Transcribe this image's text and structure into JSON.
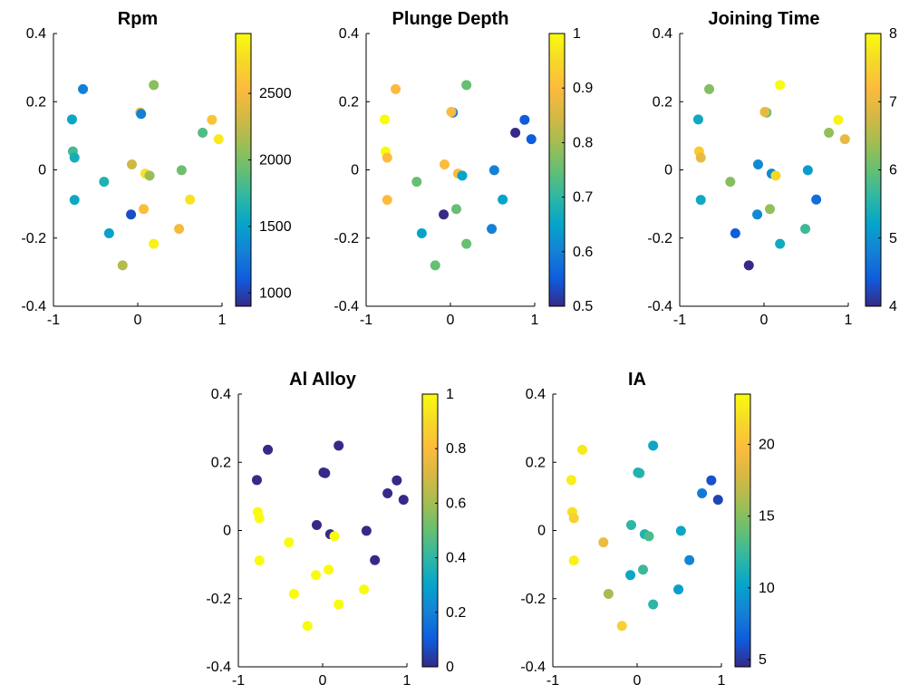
{
  "figure_bg": "#ffffff",
  "chart_data": [
    {
      "type": "scatter",
      "title": "Rpm",
      "xlim": [
        -1,
        1
      ],
      "ylim": [
        -0.4,
        0.4
      ],
      "xticks": [
        -1,
        0,
        1
      ],
      "xticklabels": [
        "-1",
        "0",
        "1"
      ],
      "yticks": [
        -0.4,
        -0.2,
        0,
        0.2,
        0.4
      ],
      "yticklabels": [
        "-0.4",
        "-0.2",
        "0",
        "0.2",
        "0.4"
      ],
      "grid": false,
      "colorbar": {
        "range": [
          900,
          2950
        ],
        "ticks": [
          1000,
          1500,
          2000,
          2500
        ],
        "ticklabels": [
          "1000",
          "1500",
          "2000",
          "2500"
        ]
      },
      "points": [
        {
          "x": -0.65,
          "y": 0.237,
          "c": 1300
        },
        {
          "x": -0.78,
          "y": 0.148,
          "c": 1550
        },
        {
          "x": -0.77,
          "y": 0.054,
          "c": 1800
        },
        {
          "x": -0.75,
          "y": 0.036,
          "c": 1600
        },
        {
          "x": -0.75,
          "y": -0.088,
          "c": 1550
        },
        {
          "x": -0.4,
          "y": -0.035,
          "c": 1650
        },
        {
          "x": -0.34,
          "y": -0.186,
          "c": 1500
        },
        {
          "x": -0.18,
          "y": -0.28,
          "c": 2200
        },
        {
          "x": -0.08,
          "y": -0.131,
          "c": 1050
        },
        {
          "x": -0.07,
          "y": 0.016,
          "c": 2300
        },
        {
          "x": 0.03,
          "y": 0.168,
          "c": 2350
        },
        {
          "x": 0.04,
          "y": 0.164,
          "c": 1300
        },
        {
          "x": 0.07,
          "y": -0.115,
          "c": 2550
        },
        {
          "x": 0.09,
          "y": -0.011,
          "c": 2800
        },
        {
          "x": 0.14,
          "y": -0.017,
          "c": 2100
        },
        {
          "x": 0.19,
          "y": 0.249,
          "c": 2050
        },
        {
          "x": 0.19,
          "y": -0.217,
          "c": 2900
        },
        {
          "x": 0.49,
          "y": -0.173,
          "c": 2500
        },
        {
          "x": 0.52,
          "y": -0.001,
          "c": 1950
        },
        {
          "x": 0.62,
          "y": -0.087,
          "c": 2800
        },
        {
          "x": 0.77,
          "y": 0.109,
          "c": 1850
        },
        {
          "x": 0.88,
          "y": 0.147,
          "c": 2600
        },
        {
          "x": 0.96,
          "y": 0.09,
          "c": 2850
        }
      ]
    },
    {
      "type": "scatter",
      "title": "Plunge Depth",
      "xlim": [
        -1,
        1
      ],
      "ylim": [
        -0.4,
        0.4
      ],
      "xticks": [
        -1,
        0,
        1
      ],
      "xticklabels": [
        "-1",
        "0",
        "1"
      ],
      "yticks": [
        -0.4,
        -0.2,
        0,
        0.2,
        0.4
      ],
      "yticklabels": [
        "-0.4",
        "-0.2",
        "0",
        "0.2",
        "0.4"
      ],
      "grid": false,
      "colorbar": {
        "range": [
          0.5,
          1.0
        ],
        "ticks": [
          0.5,
          0.6,
          0.7,
          0.8,
          0.9,
          1.0
        ],
        "ticklabels": [
          "0.5",
          "0.6",
          "0.7",
          "0.8",
          "0.9",
          "1"
        ]
      },
      "points": [
        {
          "x": -0.65,
          "y": 0.237,
          "c": 0.9
        },
        {
          "x": -0.78,
          "y": 0.148,
          "c": 1.0
        },
        {
          "x": -0.77,
          "y": 0.054,
          "c": 1.0
        },
        {
          "x": -0.75,
          "y": 0.036,
          "c": 0.9
        },
        {
          "x": -0.75,
          "y": -0.088,
          "c": 0.9
        },
        {
          "x": -0.4,
          "y": -0.035,
          "c": 0.75
        },
        {
          "x": -0.34,
          "y": -0.186,
          "c": 0.65
        },
        {
          "x": -0.18,
          "y": -0.28,
          "c": 0.75
        },
        {
          "x": -0.08,
          "y": -0.131,
          "c": 0.5
        },
        {
          "x": -0.07,
          "y": 0.016,
          "c": 0.9
        },
        {
          "x": 0.03,
          "y": 0.168,
          "c": 0.6
        },
        {
          "x": 0.01,
          "y": 0.17,
          "c": 0.9
        },
        {
          "x": 0.07,
          "y": -0.115,
          "c": 0.75
        },
        {
          "x": 0.09,
          "y": -0.011,
          "c": 0.9
        },
        {
          "x": 0.14,
          "y": -0.017,
          "c": 0.65
        },
        {
          "x": 0.19,
          "y": 0.249,
          "c": 0.75
        },
        {
          "x": 0.19,
          "y": -0.217,
          "c": 0.75
        },
        {
          "x": 0.49,
          "y": -0.173,
          "c": 0.6
        },
        {
          "x": 0.52,
          "y": -0.001,
          "c": 0.6
        },
        {
          "x": 0.62,
          "y": -0.087,
          "c": 0.65
        },
        {
          "x": 0.77,
          "y": 0.109,
          "c": 0.5
        },
        {
          "x": 0.88,
          "y": 0.147,
          "c": 0.55
        },
        {
          "x": 0.96,
          "y": 0.09,
          "c": 0.55
        }
      ]
    },
    {
      "type": "scatter",
      "title": "Joining Time",
      "xlim": [
        -1,
        1
      ],
      "ylim": [
        -0.4,
        0.4
      ],
      "xticks": [
        -1,
        0,
        1
      ],
      "xticklabels": [
        "-1",
        "0",
        "1"
      ],
      "yticks": [
        -0.4,
        -0.2,
        0,
        0.2,
        0.4
      ],
      "yticklabels": [
        "-0.4",
        "-0.2",
        "0",
        "0.2",
        "0.4"
      ],
      "grid": false,
      "colorbar": {
        "range": [
          4,
          8
        ],
        "ticks": [
          4,
          5,
          6,
          7,
          8
        ],
        "ticklabels": [
          "4",
          "5",
          "6",
          "7",
          "8"
        ]
      },
      "points": [
        {
          "x": -0.65,
          "y": 0.237,
          "c": 6.2
        },
        {
          "x": -0.78,
          "y": 0.148,
          "c": 5.3
        },
        {
          "x": -0.77,
          "y": 0.054,
          "c": 7.4
        },
        {
          "x": -0.75,
          "y": 0.036,
          "c": 7.0
        },
        {
          "x": -0.75,
          "y": -0.088,
          "c": 5.3
        },
        {
          "x": -0.4,
          "y": -0.035,
          "c": 6.2
        },
        {
          "x": -0.34,
          "y": -0.186,
          "c": 4.4
        },
        {
          "x": -0.18,
          "y": -0.28,
          "c": 4.0
        },
        {
          "x": -0.08,
          "y": -0.131,
          "c": 4.9
        },
        {
          "x": -0.07,
          "y": 0.016,
          "c": 4.9
        },
        {
          "x": 0.03,
          "y": 0.168,
          "c": 5.9
        },
        {
          "x": 0.01,
          "y": 0.17,
          "c": 7.0
        },
        {
          "x": 0.07,
          "y": -0.115,
          "c": 6.3
        },
        {
          "x": 0.09,
          "y": -0.011,
          "c": 4.9
        },
        {
          "x": 0.14,
          "y": -0.017,
          "c": 7.6
        },
        {
          "x": 0.19,
          "y": 0.249,
          "c": 8.0
        },
        {
          "x": 0.19,
          "y": -0.217,
          "c": 5.3
        },
        {
          "x": 0.49,
          "y": -0.173,
          "c": 5.7
        },
        {
          "x": 0.52,
          "y": -0.001,
          "c": 5.1
        },
        {
          "x": 0.62,
          "y": -0.087,
          "c": 4.6
        },
        {
          "x": 0.77,
          "y": 0.109,
          "c": 6.3
        },
        {
          "x": 0.88,
          "y": 0.147,
          "c": 7.9
        },
        {
          "x": 0.96,
          "y": 0.09,
          "c": 7.0
        }
      ]
    },
    {
      "type": "scatter",
      "title": "Al Alloy",
      "xlim": [
        -1,
        1
      ],
      "ylim": [
        -0.4,
        0.4
      ],
      "xticks": [
        -1,
        0,
        1
      ],
      "xticklabels": [
        "-1",
        "0",
        "1"
      ],
      "yticks": [
        -0.4,
        -0.2,
        0,
        0.2,
        0.4
      ],
      "yticklabels": [
        "-0.4",
        "-0.2",
        "0",
        "0.2",
        "0.4"
      ],
      "grid": false,
      "colorbar": {
        "range": [
          0,
          1
        ],
        "ticks": [
          0,
          0.2,
          0.4,
          0.6,
          0.8,
          1.0
        ],
        "ticklabels": [
          "0",
          "0.2",
          "0.4",
          "0.6",
          "0.8",
          "1"
        ]
      },
      "points": [
        {
          "x": -0.65,
          "y": 0.237,
          "c": 0
        },
        {
          "x": -0.78,
          "y": 0.148,
          "c": 0
        },
        {
          "x": -0.77,
          "y": 0.054,
          "c": 1
        },
        {
          "x": -0.75,
          "y": 0.036,
          "c": 1
        },
        {
          "x": -0.75,
          "y": -0.088,
          "c": 1
        },
        {
          "x": -0.4,
          "y": -0.035,
          "c": 1
        },
        {
          "x": -0.34,
          "y": -0.186,
          "c": 1
        },
        {
          "x": -0.18,
          "y": -0.28,
          "c": 1
        },
        {
          "x": -0.08,
          "y": -0.131,
          "c": 1
        },
        {
          "x": -0.07,
          "y": 0.016,
          "c": 0
        },
        {
          "x": 0.03,
          "y": 0.168,
          "c": 0
        },
        {
          "x": 0.01,
          "y": 0.17,
          "c": 0
        },
        {
          "x": 0.07,
          "y": -0.115,
          "c": 1
        },
        {
          "x": 0.09,
          "y": -0.011,
          "c": 0
        },
        {
          "x": 0.14,
          "y": -0.017,
          "c": 1
        },
        {
          "x": 0.19,
          "y": 0.249,
          "c": 0
        },
        {
          "x": 0.19,
          "y": -0.217,
          "c": 1
        },
        {
          "x": 0.49,
          "y": -0.173,
          "c": 1
        },
        {
          "x": 0.52,
          "y": -0.001,
          "c": 0
        },
        {
          "x": 0.62,
          "y": -0.087,
          "c": 0
        },
        {
          "x": 0.77,
          "y": 0.109,
          "c": 0
        },
        {
          "x": 0.88,
          "y": 0.147,
          "c": 0
        },
        {
          "x": 0.96,
          "y": 0.09,
          "c": 0
        }
      ]
    },
    {
      "type": "scatter",
      "title": "IA",
      "xlim": [
        -1,
        1
      ],
      "ylim": [
        -0.4,
        0.4
      ],
      "xticks": [
        -1,
        0,
        1
      ],
      "xticklabels": [
        "-1",
        "0",
        "1"
      ],
      "yticks": [
        -0.4,
        -0.2,
        0,
        0.2,
        0.4
      ],
      "yticklabels": [
        "-0.4",
        "-0.2",
        "0",
        "0.2",
        "0.4"
      ],
      "grid": false,
      "colorbar": {
        "range": [
          4.5,
          23.5
        ],
        "ticks": [
          5,
          10,
          15,
          20
        ],
        "ticklabels": [
          "5",
          "10",
          "15",
          "20"
        ]
      },
      "points": [
        {
          "x": -0.65,
          "y": 0.237,
          "c": 22.5
        },
        {
          "x": -0.78,
          "y": 0.148,
          "c": 22.8
        },
        {
          "x": -0.77,
          "y": 0.054,
          "c": 22.0
        },
        {
          "x": -0.75,
          "y": 0.036,
          "c": 21.0
        },
        {
          "x": -0.75,
          "y": -0.088,
          "c": 23.0
        },
        {
          "x": -0.4,
          "y": -0.035,
          "c": 19.0
        },
        {
          "x": -0.34,
          "y": -0.186,
          "c": 16.0
        },
        {
          "x": -0.18,
          "y": -0.28,
          "c": 21.0
        },
        {
          "x": -0.08,
          "y": -0.131,
          "c": 10.5
        },
        {
          "x": -0.07,
          "y": 0.016,
          "c": 12.0
        },
        {
          "x": 0.03,
          "y": 0.168,
          "c": 12.0
        },
        {
          "x": 0.01,
          "y": 0.17,
          "c": 11.5
        },
        {
          "x": 0.07,
          "y": -0.115,
          "c": 12.5
        },
        {
          "x": 0.09,
          "y": -0.011,
          "c": 11.5
        },
        {
          "x": 0.14,
          "y": -0.017,
          "c": 13.0
        },
        {
          "x": 0.19,
          "y": 0.249,
          "c": 10.5
        },
        {
          "x": 0.19,
          "y": -0.217,
          "c": 12.0
        },
        {
          "x": 0.49,
          "y": -0.173,
          "c": 10.0
        },
        {
          "x": 0.52,
          "y": -0.001,
          "c": 10.5
        },
        {
          "x": 0.62,
          "y": -0.087,
          "c": 8.5
        },
        {
          "x": 0.77,
          "y": 0.109,
          "c": 8.0
        },
        {
          "x": 0.88,
          "y": 0.147,
          "c": 6.0
        },
        {
          "x": 0.96,
          "y": 0.09,
          "c": 5.5
        }
      ]
    }
  ]
}
